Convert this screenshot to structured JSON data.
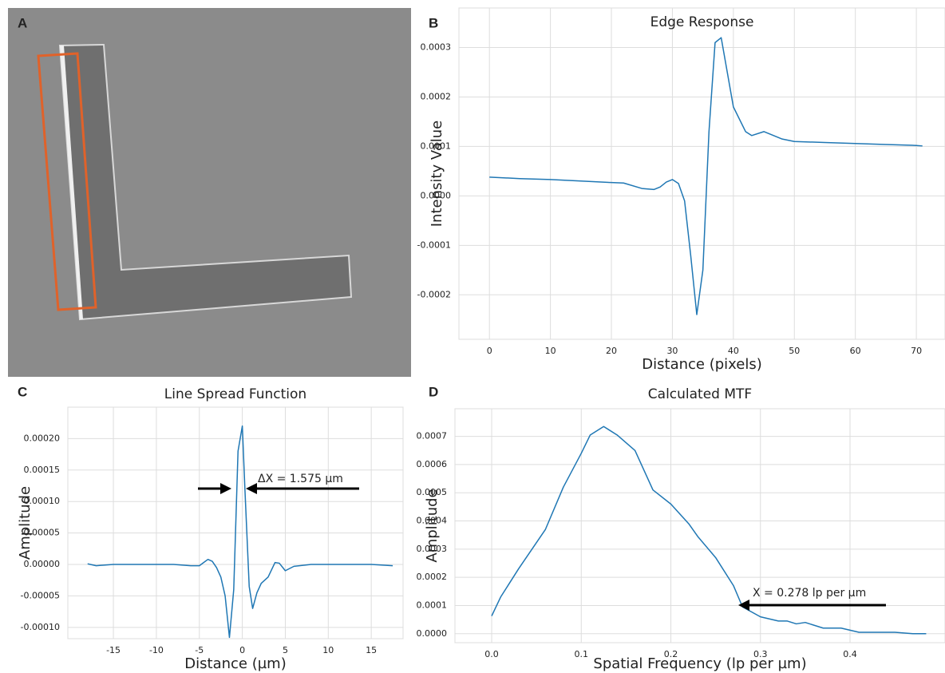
{
  "panel_a": {
    "label": "A"
  },
  "chart_data": [
    {
      "type": "line",
      "label": "B",
      "title": "Edge Response",
      "x_label": "Distance (pixels)",
      "y_label": "Intensity Value",
      "color": "#1f77b4",
      "grid": true,
      "x": [
        0,
        5,
        10,
        15,
        20,
        22,
        25,
        27,
        28,
        29,
        30,
        31,
        32,
        33,
        34,
        35,
        36,
        37,
        38,
        39,
        40,
        42,
        43,
        45,
        46,
        48,
        50,
        55,
        60,
        65,
        70,
        71
      ],
      "values": [
        3.8e-05,
        3.5e-05,
        3.3e-05,
        3e-05,
        2.7e-05,
        2.6e-05,
        1.5e-05,
        1.3e-05,
        1.8e-05,
        2.8e-05,
        3.3e-05,
        2.5e-05,
        -1e-05,
        -0.00012,
        -0.00024,
        -0.00015,
        0.00013,
        0.00031,
        0.00032,
        0.00025,
        0.00018,
        0.00013,
        0.000122,
        0.00013,
        0.000125,
        0.000115,
        0.00011,
        0.000108,
        0.000106,
        0.000104,
        0.000102,
        0.000101
      ],
      "xlim": [
        -5,
        74.7
      ],
      "ylim": [
        -0.00029,
        0.00038
      ],
      "xticks": [
        0,
        10,
        20,
        30,
        40,
        50,
        60,
        70
      ],
      "yticks": [
        -0.0002,
        -0.0001,
        {
          "value": 0,
          "label": "0.0000"
        },
        0.0001,
        0.0002,
        0.0003
      ]
    },
    {
      "type": "line",
      "label": "C",
      "title": "Line Spread Function",
      "x_label": "Distance (µm)",
      "y_label": "Amplitude",
      "color": "#1f77b4",
      "grid": true,
      "annotation": "ΔX = 1.575 µm",
      "x": [
        -18,
        -17,
        -15,
        -12,
        -10,
        -8,
        -6,
        -5,
        -4.5,
        -4,
        -3.5,
        -3,
        -2.5,
        -2,
        -1.5,
        -1,
        -0.5,
        0,
        0.3,
        0.8,
        1.2,
        1.7,
        2.2,
        3,
        3.8,
        4.3,
        5,
        6,
        8,
        10,
        12,
        15,
        17.5
      ],
      "values": [
        1e-06,
        -2e-06,
        0,
        0,
        0,
        0,
        -2e-06,
        -2e-06,
        3e-06,
        8e-06,
        5e-06,
        -5e-06,
        -2e-05,
        -5e-05,
        -0.000116,
        -4e-05,
        0.00018,
        0.00022,
        0.00012,
        -3.5e-05,
        -7e-05,
        -4.5e-05,
        -3e-05,
        -2e-05,
        3e-06,
        2e-06,
        -1e-05,
        -3e-06,
        0,
        0,
        0,
        0,
        -2e-06
      ],
      "xlim": [
        -20.3,
        18.7
      ],
      "ylim": [
        -0.000118,
        0.00025
      ],
      "xticks": [
        -15,
        -10,
        -5,
        0,
        5,
        10,
        15
      ],
      "yticks": [
        {
          "value": -0.0001,
          "label": "-0.00010"
        },
        {
          "value": -5e-05,
          "label": "-0.00005"
        },
        {
          "value": 0,
          "label": "0.00000"
        },
        {
          "value": 5e-05,
          "label": "0.00005"
        },
        {
          "value": 0.0001,
          "label": "0.00010"
        },
        {
          "value": 0.00015,
          "label": "0.00015"
        },
        {
          "value": 0.0002,
          "label": "0.00020"
        }
      ]
    },
    {
      "type": "line",
      "label": "D",
      "title": "Calculated MTF",
      "x_label": "Spatial Frequency  (lp per µm)",
      "y_label": "Amplitude",
      "color": "#1f77b4",
      "grid": true,
      "annotation": "X = 0.278 lp per µm",
      "x": [
        0,
        0.01,
        0.03,
        0.06,
        0.08,
        0.1,
        0.11,
        0.125,
        0.14,
        0.16,
        0.18,
        0.2,
        0.22,
        0.23,
        0.25,
        0.27,
        0.28,
        0.3,
        0.32,
        0.33,
        0.34,
        0.35,
        0.37,
        0.39,
        0.41,
        0.43,
        0.45,
        0.47,
        0.485
      ],
      "values": [
        6.3e-05,
        0.00013,
        0.00023,
        0.00037,
        0.00052,
        0.00064,
        0.000705,
        0.000735,
        0.000705,
        0.00065,
        0.00051,
        0.00046,
        0.00039,
        0.000345,
        0.00027,
        0.00017,
        9.5e-05,
        6e-05,
        4.5e-05,
        4.5e-05,
        3.5e-05,
        4e-05,
        2e-05,
        2e-05,
        5e-06,
        5e-06,
        5e-06,
        0,
        0
      ],
      "xlim": [
        -0.041,
        0.506
      ],
      "ylim": [
        -3.17e-05,
        0.000798
      ],
      "xticks": [
        {
          "value": 0,
          "label": "0.0"
        },
        0.1,
        0.2,
        0.3,
        0.4
      ],
      "yticks": [
        {
          "value": 0,
          "label": "0.0000"
        },
        0.0001,
        0.0002,
        0.0003,
        0.0004,
        0.0005,
        0.0006,
        0.0007
      ]
    }
  ]
}
